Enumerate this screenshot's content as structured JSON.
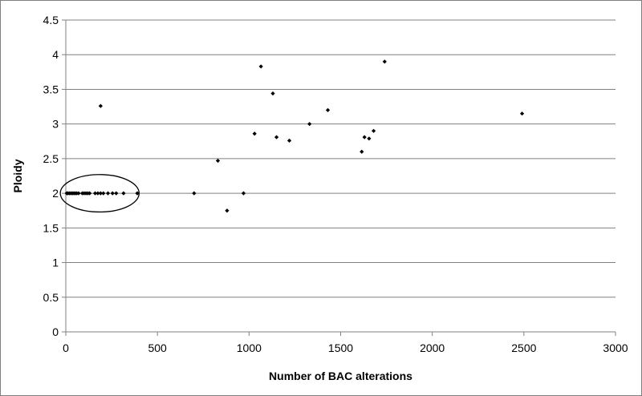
{
  "chart_data": {
    "type": "scatter",
    "xlabel": "Number of BAC alterations",
    "ylabel": "Ploidy",
    "xlim": [
      0,
      3000
    ],
    "ylim": [
      0,
      4.5
    ],
    "xticks": [
      "0",
      "500",
      "1000",
      "1500",
      "2000",
      "2500",
      "3000"
    ],
    "yticks": [
      "0",
      "0.5",
      "1",
      "1.5",
      "2",
      "2.5",
      "3",
      "3.5",
      "4",
      "4.5"
    ],
    "grid": "horizontal",
    "legend": "none",
    "marker_color": "#000000",
    "highlight": {
      "shape": "ellipse",
      "x_center": 185,
      "y_center": 2.0,
      "x_radius": 430,
      "y_radius": 0.27
    },
    "points": [
      {
        "x": 5,
        "y": 2.0
      },
      {
        "x": 12,
        "y": 2.0
      },
      {
        "x": 20,
        "y": 2.0
      },
      {
        "x": 28,
        "y": 2.0
      },
      {
        "x": 36,
        "y": 2.0
      },
      {
        "x": 44,
        "y": 2.0
      },
      {
        "x": 52,
        "y": 2.0
      },
      {
        "x": 60,
        "y": 2.0
      },
      {
        "x": 70,
        "y": 2.0
      },
      {
        "x": 90,
        "y": 2.0
      },
      {
        "x": 100,
        "y": 2.0
      },
      {
        "x": 110,
        "y": 2.0
      },
      {
        "x": 120,
        "y": 2.0
      },
      {
        "x": 130,
        "y": 2.0
      },
      {
        "x": 160,
        "y": 2.0
      },
      {
        "x": 175,
        "y": 2.0
      },
      {
        "x": 190,
        "y": 2.0
      },
      {
        "x": 205,
        "y": 2.0
      },
      {
        "x": 230,
        "y": 2.0
      },
      {
        "x": 255,
        "y": 2.0
      },
      {
        "x": 275,
        "y": 2.0
      },
      {
        "x": 315,
        "y": 2.0
      },
      {
        "x": 390,
        "y": 2.0
      },
      {
        "x": 190,
        "y": 3.26
      },
      {
        "x": 700,
        "y": 2.0
      },
      {
        "x": 830,
        "y": 2.47
      },
      {
        "x": 880,
        "y": 1.75
      },
      {
        "x": 970,
        "y": 2.0
      },
      {
        "x": 1030,
        "y": 2.86
      },
      {
        "x": 1065,
        "y": 3.83
      },
      {
        "x": 1130,
        "y": 3.44
      },
      {
        "x": 1150,
        "y": 2.81
      },
      {
        "x": 1220,
        "y": 2.76
      },
      {
        "x": 1330,
        "y": 3.0
      },
      {
        "x": 1430,
        "y": 3.2
      },
      {
        "x": 1615,
        "y": 2.6
      },
      {
        "x": 1630,
        "y": 2.81
      },
      {
        "x": 1655,
        "y": 2.79
      },
      {
        "x": 1680,
        "y": 2.9
      },
      {
        "x": 1740,
        "y": 3.9
      },
      {
        "x": 2490,
        "y": 3.15
      }
    ]
  }
}
